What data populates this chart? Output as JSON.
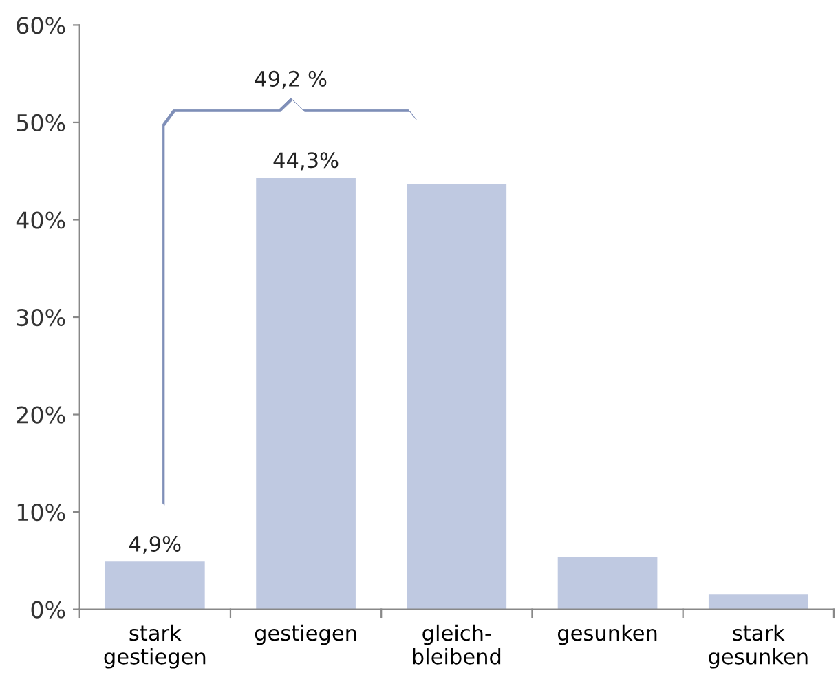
{
  "chart_data": {
    "type": "bar",
    "categories": [
      "stark\ngestiegen",
      "gestiegen",
      "gleich-\nbleibend",
      "gesunken",
      "stark\ngesunken"
    ],
    "values": [
      4.9,
      44.3,
      43.7,
      5.4,
      1.5
    ],
    "value_labels": [
      "4,9%",
      "44,3%",
      null,
      null,
      null
    ],
    "color": "#bfc9e1",
    "ylim": [
      0,
      60
    ],
    "yticks": [
      {
        "value": 0,
        "label": "0%"
      },
      {
        "value": 10,
        "label": "10%"
      },
      {
        "value": 20,
        "label": "20%"
      },
      {
        "value": 30,
        "label": "30%"
      },
      {
        "value": 40,
        "label": "40%"
      },
      {
        "value": 50,
        "label": "50%"
      },
      {
        "value": 60,
        "label": "60%"
      }
    ],
    "annotations": [
      "49,2 %"
    ],
    "grid": false,
    "legend": false
  }
}
